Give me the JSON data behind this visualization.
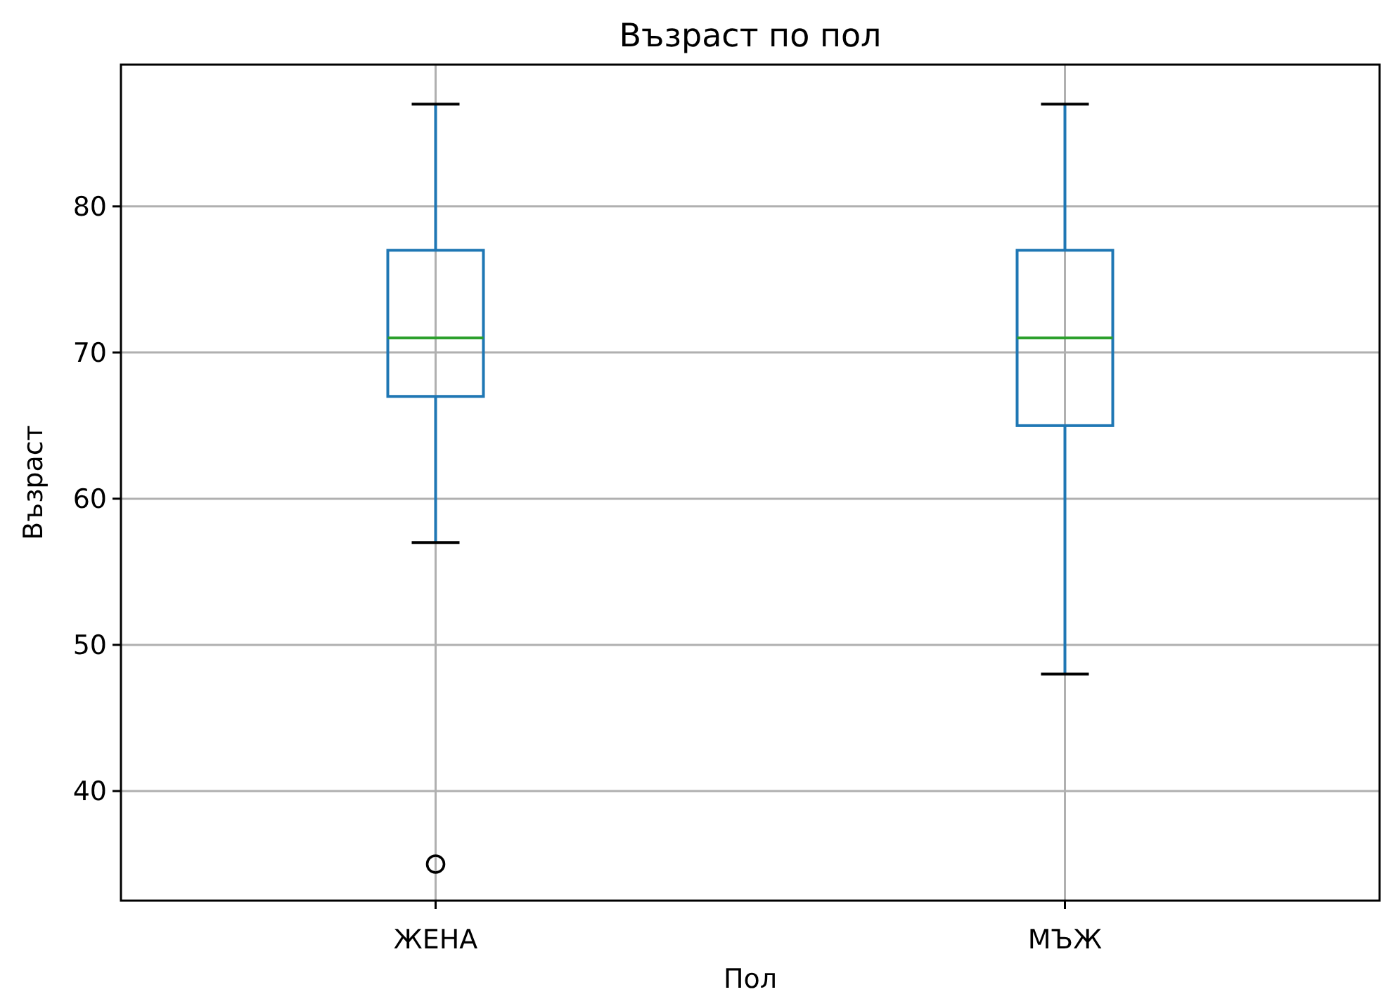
{
  "chart_data": {
    "type": "box",
    "title": "Възраст по пол",
    "xlabel": "Пол",
    "ylabel": "Възраст",
    "categories": [
      "ЖЕНА",
      "МЪЖ"
    ],
    "color": "#1f77b4",
    "boxes": [
      {
        "low": 57,
        "q1": 67,
        "median": 71,
        "q3": 77,
        "high": 87,
        "outliers": [
          35
        ]
      },
      {
        "low": 48,
        "q1": 65,
        "median": 71,
        "q3": 77,
        "high": 87
      }
    ],
    "ylim": [
      32.5,
      89.7
    ],
    "yticks": [
      40,
      50,
      60,
      70,
      80
    ],
    "grid": true
  }
}
